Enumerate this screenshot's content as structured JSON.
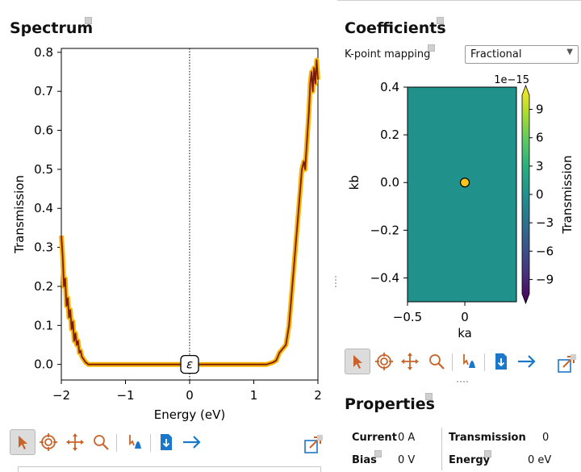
{
  "spectrum": {
    "title": "Spectrum",
    "chart_data": {
      "type": "line",
      "xlabel": "Energy (eV)",
      "ylabel": "Transmission",
      "xlim": [
        -2,
        2
      ],
      "ylim": [
        -0.04,
        0.81
      ],
      "xticks": [
        -2,
        -1,
        0,
        1,
        2
      ],
      "yticks": [
        0.0,
        0.1,
        0.2,
        0.3,
        0.4,
        0.5,
        0.6,
        0.7,
        0.8
      ],
      "marker_label": "ε",
      "marker_x": 0,
      "series": [
        {
          "x": [
            -2.0,
            -1.98,
            -1.96,
            -1.94,
            -1.92,
            -1.9,
            -1.88,
            -1.86,
            -1.84,
            -1.82,
            -1.8,
            -1.78,
            -1.76,
            -1.74,
            -1.72,
            -1.7,
            -1.68,
            -1.66,
            -1.64,
            -1.62,
            -1.6,
            -1.58,
            -1.55,
            -1.5,
            -1.0,
            -0.5,
            0.0,
            0.5,
            1.0,
            1.2,
            1.3,
            1.35,
            1.4,
            1.45,
            1.5,
            1.55,
            1.6,
            1.65,
            1.7,
            1.75,
            1.78,
            1.8,
            1.82,
            1.84,
            1.86,
            1.88,
            1.9,
            1.92,
            1.94,
            1.96,
            1.98,
            2.0
          ],
          "y": [
            0.33,
            0.28,
            0.2,
            0.22,
            0.15,
            0.17,
            0.12,
            0.14,
            0.09,
            0.11,
            0.06,
            0.08,
            0.05,
            0.06,
            0.03,
            0.035,
            0.02,
            0.015,
            0.01,
            0.005,
            0.003,
            0.0,
            0.0,
            0.0,
            0.0,
            0.0,
            0.0,
            0.0,
            0.0,
            0.0,
            0.005,
            0.01,
            0.03,
            0.04,
            0.05,
            0.1,
            0.2,
            0.3,
            0.4,
            0.5,
            0.52,
            0.5,
            0.55,
            0.6,
            0.65,
            0.72,
            0.75,
            0.7,
            0.76,
            0.72,
            0.78,
            0.73
          ]
        }
      ]
    },
    "toolbar": {
      "select_icon": "pointer-icon",
      "target_icon": "crosshair-icon",
      "pan_icon": "move-arrows-icon",
      "zoom_icon": "magnifier-icon",
      "hover_icon": "hover-inspect-icon",
      "save_icon": "download-file-icon",
      "next_icon": "arrow-right-icon",
      "popout_icon": "popout-icon"
    }
  },
  "coefficients": {
    "title": "Coefficients",
    "kpoint_label": "K-point mapping",
    "kpoint_value": "Fractional",
    "chart_data": {
      "type": "heatmap",
      "xlabel": "ka",
      "ylabel": "kb",
      "xlim": [
        -0.5,
        0.45
      ],
      "ylim": [
        -0.5,
        0.4
      ],
      "xticks": [
        -0.5,
        0.0
      ],
      "yticks": [
        -0.4,
        -0.2,
        0.0,
        0.2,
        0.4
      ],
      "fill_value": 0,
      "point": {
        "x": 0.0,
        "y": 0.0
      },
      "colorbar": {
        "label": "Transmission",
        "offset": "1e−15",
        "ticks": [
          9,
          6,
          3,
          0,
          -3,
          -6,
          -9
        ],
        "ticklabels": [
          "9",
          "6",
          "3",
          "0",
          "−3",
          "−6",
          "−9"
        ],
        "range": [
          -10.5,
          10.5
        ]
      }
    }
  },
  "properties": {
    "title": "Properties",
    "current_label": "Current",
    "current_value": "0 A",
    "transmission_label": "Transmission",
    "transmission_value": "0",
    "bias_label": "Bias",
    "bias_value": "0 V",
    "energy_label": "Energy",
    "energy_value": "0 eV"
  },
  "colors": {
    "curve_outer": "#f7b500",
    "curve_inner": "#7a1a10",
    "heatmap_fill": "#21918c",
    "point_fill": "#fcc419",
    "toolbar_orange": "#c8642a",
    "toolbar_blue": "#1b77c9"
  }
}
